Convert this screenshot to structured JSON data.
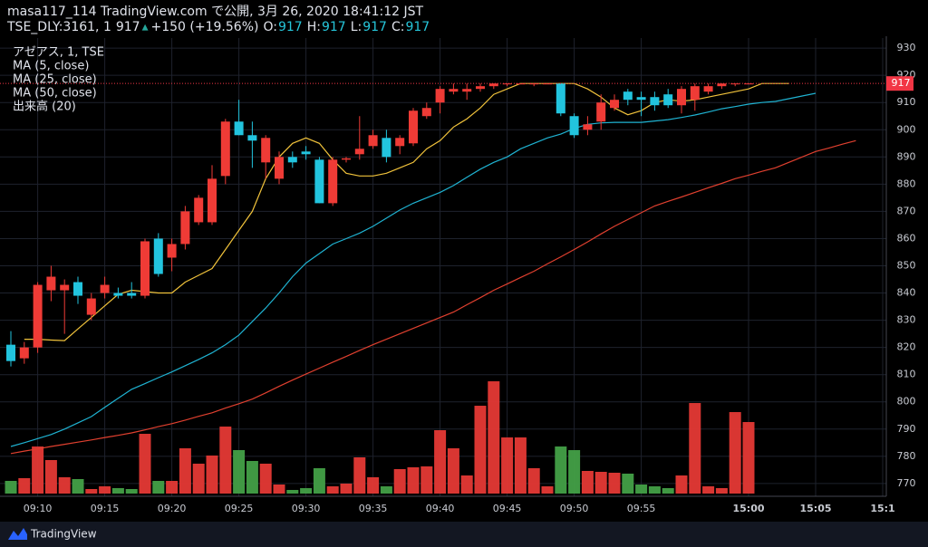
{
  "header": {
    "publisher": "masa117_114 TradingView.com で公開, 3月 26, 2020 18:41:12 JST"
  },
  "quote": {
    "symbol": "TSE_DLY:3161, 1",
    "last": 917,
    "arrow": "▲",
    "change": "+150 (+19.56%)",
    "ohlc": [
      {
        "label": "O:",
        "value": 917
      },
      {
        "label": "H:",
        "value": 917
      },
      {
        "label": "L:",
        "value": 917
      },
      {
        "label": "C:",
        "value": 917
      }
    ]
  },
  "footer": {
    "logo": "TradingView"
  },
  "chart_data": {
    "type": "candlestick",
    "title": "アゼアス, 1, TSE",
    "categories": [
      null,
      null,
      "09:10",
      null,
      null,
      null,
      null,
      "09:15",
      null,
      null,
      null,
      null,
      "09:20",
      null,
      null,
      null,
      null,
      "09:25",
      null,
      null,
      null,
      null,
      "09:30",
      null,
      null,
      null,
      null,
      "09:35",
      null,
      null,
      null,
      null,
      "09:40",
      null,
      null,
      null,
      null,
      "09:45",
      null,
      null,
      null,
      null,
      "09:50",
      null,
      null,
      null,
      null,
      "09:55",
      null,
      null,
      null,
      null,
      null,
      null,
      null,
      "15:00",
      null,
      null,
      null,
      null,
      "15:05",
      null,
      null,
      null,
      null,
      "15:1"
    ],
    "open": [
      821,
      816,
      820,
      841,
      841,
      844,
      832,
      840,
      840,
      840,
      839,
      860,
      853,
      858,
      866,
      866,
      883,
      903,
      898,
      888,
      882,
      890,
      892,
      889,
      873,
      889,
      891,
      894,
      897,
      894,
      895,
      905,
      910,
      914,
      914,
      915,
      916,
      917,
      917,
      917,
      917,
      917,
      905,
      900,
      903,
      908,
      914,
      912,
      912,
      913,
      909,
      911,
      914,
      916,
      917,
      917,
      null,
      null,
      null,
      null,
      null,
      null,
      null,
      null,
      null,
      null
    ],
    "high": [
      826,
      822,
      844,
      850,
      845,
      846,
      840,
      846,
      842,
      844,
      860,
      862,
      860,
      872,
      876,
      887,
      904,
      911,
      903,
      898,
      892,
      892,
      894,
      890,
      890,
      890,
      905,
      900,
      900,
      898,
      908,
      910,
      916,
      917,
      917,
      917,
      917,
      917,
      917,
      917,
      917,
      917,
      906,
      905,
      913,
      913,
      915,
      914,
      914,
      915,
      916,
      917,
      917,
      917,
      917,
      917,
      null,
      null,
      null,
      null,
      null,
      null,
      null,
      null,
      null,
      null
    ],
    "low": [
      813,
      814,
      818,
      837,
      825,
      836,
      830,
      838,
      838,
      838,
      838,
      846,
      848,
      856,
      865,
      865,
      880,
      898,
      886,
      882,
      880,
      886,
      889,
      873,
      872,
      888,
      889,
      893,
      888,
      891,
      894,
      904,
      906,
      913,
      911,
      914,
      915,
      916,
      917,
      916,
      917,
      905,
      897,
      898,
      900,
      907,
      909,
      905,
      907,
      908,
      906,
      907,
      913,
      915,
      916,
      917,
      null,
      null,
      null,
      null,
      null,
      null,
      null,
      null,
      null,
      null
    ],
    "close": [
      815,
      820,
      843,
      846,
      843,
      839,
      838,
      843,
      839,
      839,
      859,
      847,
      858,
      870,
      875,
      882,
      903,
      898,
      896,
      897,
      890,
      888,
      891,
      873,
      889,
      889.5,
      893,
      898,
      890,
      897,
      907,
      908,
      915,
      915,
      915,
      916,
      917,
      917,
      917,
      917,
      917,
      906,
      898,
      902,
      910,
      911,
      911,
      911,
      909,
      909,
      915,
      916,
      916,
      917,
      917,
      917,
      null,
      null,
      null,
      null,
      null,
      null,
      null,
      null,
      null,
      null
    ],
    "up_color": "#ef3b36",
    "down_color": "#22c4de",
    "volume": {
      "name": "出来高 (20)",
      "up_color": "#e53935",
      "down_color": "#43a047",
      "values": [
        14,
        17,
        52,
        37,
        18,
        16,
        5,
        8,
        6,
        5,
        66,
        14,
        14,
        50,
        33,
        42,
        74,
        48,
        36,
        33,
        10,
        4,
        6,
        28,
        8,
        11,
        40,
        18,
        8,
        27,
        29,
        30,
        70,
        50,
        20,
        97,
        124,
        62,
        62,
        28,
        8,
        52,
        48,
        25,
        24,
        23,
        22,
        10,
        8,
        6,
        20,
        100,
        8,
        6,
        90,
        79,
        null,
        null,
        null,
        null,
        null,
        null,
        null,
        null,
        null,
        null
      ]
    },
    "series": [
      {
        "name": "MA (5, close)",
        "color": "#f0c23b",
        "values": [
          null,
          823,
          823,
          822.7,
          822.5,
          826.8,
          831,
          835.3,
          839.5,
          841,
          840.5,
          840,
          840,
          844,
          846.5,
          849,
          856,
          863,
          870,
          882,
          890,
          895,
          897,
          895,
          889,
          884,
          883,
          883,
          884,
          886,
          888,
          893,
          896,
          901,
          904,
          908,
          913,
          915,
          917,
          917,
          917,
          917,
          917,
          915,
          912,
          908,
          905.5,
          907,
          910,
          911,
          910.5,
          911,
          912,
          913,
          914,
          915,
          917,
          917,
          917,
          null,
          null,
          null,
          null,
          null,
          null,
          null
        ]
      },
      {
        "name": "MA (25, close)",
        "color": "#1fb3d2",
        "values": [
          783.6,
          785,
          786.5,
          788,
          790,
          792.3,
          794.6,
          798,
          801.3,
          804.6,
          806.7,
          808.9,
          811,
          813.3,
          815.6,
          818,
          821,
          824.5,
          829.5,
          834.5,
          840,
          846,
          851,
          854.5,
          858,
          860,
          862,
          864.5,
          867.5,
          870.5,
          873,
          875,
          877,
          879.5,
          882.5,
          885.5,
          888,
          890,
          893,
          895,
          897,
          898.4,
          900.5,
          902,
          902.5,
          902.7,
          902.7,
          902.7,
          903.2,
          903.7,
          904.5,
          905.4,
          906.5,
          907.7,
          908.5,
          909.4,
          910,
          910.4,
          911.4,
          912.4,
          913.4,
          null,
          null,
          null,
          null,
          null
        ]
      },
      {
        "name": "MA (50, close)",
        "color": "#e0402f",
        "values": [
          781,
          781.9,
          782.7,
          783.6,
          784.4,
          785.2,
          786,
          786.9,
          787.7,
          788.6,
          789.7,
          790.9,
          792,
          793.3,
          794.7,
          796,
          797.7,
          799.3,
          801,
          803.3,
          805.7,
          808,
          810.2,
          812.4,
          814.6,
          816.7,
          818.9,
          821,
          823,
          825,
          827,
          829,
          831,
          833,
          835.7,
          838.3,
          841,
          843.3,
          845.7,
          848,
          850.7,
          853.3,
          856,
          858.8,
          861.7,
          864.5,
          867,
          869.5,
          872,
          873.7,
          875.3,
          877,
          878.7,
          880.3,
          882,
          883.3,
          884.7,
          886,
          888,
          890,
          892,
          893.3,
          894.7,
          896,
          null,
          null
        ]
      }
    ],
    "ylim": [
      765.3,
      933.7
    ],
    "yticks": [
      770,
      780,
      790,
      800,
      810,
      820,
      830,
      840,
      850,
      860,
      870,
      880,
      890,
      900,
      910,
      920,
      930
    ],
    "grid": true,
    "last_price": 917,
    "last_color": "#f23645"
  }
}
